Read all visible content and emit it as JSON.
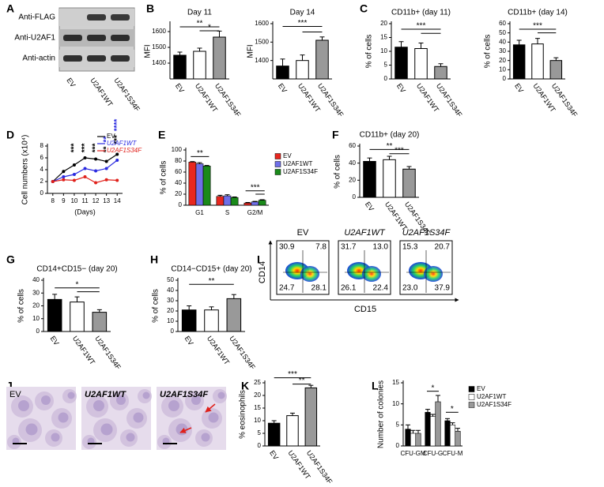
{
  "panel_labels": [
    "A",
    "B",
    "C",
    "D",
    "E",
    "F",
    "G",
    "H",
    "I",
    "J",
    "K",
    "L"
  ],
  "blot": {
    "rows": [
      "Anti-FLAG",
      "Anti-U2AF1",
      "Anti-actin"
    ],
    "lanes": [
      "EV",
      "U2AF1WT",
      "U2AF1S34F"
    ]
  },
  "flow": {
    "y_label": "CD14",
    "x_label": "CD15",
    "panels": [
      {
        "label": "EV",
        "quadrants": [
          "30.9",
          "7.8",
          "24.7",
          "28.1"
        ]
      },
      {
        "label": "U2AF1WT",
        "quadrants": [
          "31.7",
          "13.0",
          "26.1",
          "22.4"
        ]
      },
      {
        "label": "U2AF1S34F",
        "quadrants": [
          "15.3",
          "20.7",
          "23.0",
          "37.9"
        ]
      }
    ]
  },
  "micrographs": {
    "labels": [
      "EV",
      "U2AF1WT",
      "U2AF1S34F"
    ]
  },
  "chart_data": [
    {
      "type": "bar",
      "title": "Day 11",
      "y_label": "MFI",
      "categories": [
        "EV",
        "U2AF1WT",
        "U2AF1S34F"
      ],
      "values": [
        1450,
        1475,
        1565
      ],
      "errors": [
        20,
        20,
        38
      ],
      "colors": [
        "#000000",
        "#ffffff",
        "#999999"
      ],
      "ylim": [
        1300,
        1650
      ],
      "yticks": [
        1400,
        1500,
        1600
      ],
      "annotations": [
        "**",
        "*"
      ]
    },
    {
      "type": "bar",
      "title": "Day 14",
      "y_label": "MFI",
      "categories": [
        "EV",
        "U2AF1WT",
        "U2AF1S34F"
      ],
      "values": [
        1370,
        1400,
        1510
      ],
      "errors": [
        38,
        30,
        18
      ],
      "colors": [
        "#000000",
        "#ffffff",
        "#999999"
      ],
      "ylim": [
        1300,
        1600
      ],
      "yticks": [
        1400,
        1500,
        1600
      ],
      "annotations": [
        "***"
      ]
    },
    {
      "type": "bar",
      "title": "CD11b+ (day 11)",
      "y_label": "% of cells",
      "categories": [
        "EV",
        "U2AF1WT",
        "U2AF1S34F"
      ],
      "values": [
        11.5,
        11,
        4.5
      ],
      "errors": [
        2,
        2,
        1
      ],
      "colors": [
        "#000000",
        "#ffffff",
        "#999999"
      ],
      "ylim": [
        0,
        20
      ],
      "yticks": [
        0,
        5,
        10,
        15,
        20
      ],
      "annotations": [
        "***"
      ]
    },
    {
      "type": "bar",
      "title": "CD11b+ (day 14)",
      "y_label": "% of cells",
      "categories": [
        "EV",
        "U2AF1WT",
        "U2AF1S34F"
      ],
      "values": [
        37,
        38,
        20
      ],
      "errors": [
        5,
        6,
        3
      ],
      "colors": [
        "#000000",
        "#ffffff",
        "#999999"
      ],
      "ylim": [
        0,
        60
      ],
      "yticks": [
        0,
        10,
        20,
        30,
        40,
        50,
        60
      ],
      "annotations": [
        "***"
      ]
    },
    {
      "type": "line",
      "y_label": "Cell numbers (x10⁴)",
      "x_label": "(Days)",
      "x": [
        8,
        9,
        10,
        11,
        12,
        13,
        14
      ],
      "series": [
        {
          "name": "EV",
          "color": "#000000",
          "values": [
            2,
            3.7,
            4.8,
            6,
            5.8,
            5.4,
            6.6
          ]
        },
        {
          "name": "U2AF1WT",
          "color": "#2a2ae0",
          "values": [
            2,
            2.8,
            3.2,
            4.2,
            3.8,
            4.2,
            5.6
          ]
        },
        {
          "name": "U2AF1S34F",
          "color": "#e0201a",
          "values": [
            2,
            2.3,
            2.2,
            2.8,
            1.8,
            2.3,
            2.2
          ]
        }
      ],
      "xlim": [
        7.5,
        14.5
      ],
      "xticks": [
        8,
        9,
        10,
        11,
        12,
        13,
        14
      ],
      "ylim": [
        0,
        8
      ],
      "yticks": [
        0,
        2,
        4,
        6,
        8
      ],
      "annotations": [
        "***",
        "***",
        "***",
        "**",
        "***",
        "**",
        "****"
      ]
    },
    {
      "type": "grouped_bar",
      "y_label": "% of cells",
      "categories": [
        "G1",
        "S",
        "G2/M"
      ],
      "series": [
        {
          "name": "EV",
          "color": "#e8271f",
          "values": [
            78,
            16,
            4
          ],
          "errors": [
            1,
            2,
            1
          ]
        },
        {
          "name": "U2AF1WT",
          "color": "#6f6fe8",
          "values": [
            75,
            17,
            6
          ],
          "errors": [
            2,
            2,
            1
          ]
        },
        {
          "name": "U2AF1S34F",
          "color": "#1a8a1a",
          "values": [
            71,
            14,
            9
          ],
          "errors": [
            1,
            1,
            1
          ]
        }
      ],
      "ylim": [
        0,
        100
      ],
      "yticks": [
        0,
        20,
        40,
        60,
        80,
        100
      ],
      "annotations": [
        "**",
        "***"
      ]
    },
    {
      "type": "bar",
      "title": "CD11b+ (day 20)",
      "y_label": "% of cells",
      "categories": [
        "EV",
        "U2AF1WT",
        "U2AF1S34F"
      ],
      "values": [
        42,
        44,
        33
      ],
      "errors": [
        4,
        4,
        3
      ],
      "colors": [
        "#000000",
        "#ffffff",
        "#999999"
      ],
      "ylim": [
        0,
        60
      ],
      "yticks": [
        0,
        20,
        40,
        60
      ],
      "annotations": [
        "**",
        "***"
      ]
    },
    {
      "type": "bar",
      "title": "CD14+CD15− (day 20)",
      "y_label": "% of cells",
      "categories": [
        "EV",
        "U2AF1WT",
        "U2AF1S34F"
      ],
      "values": [
        25,
        23,
        15
      ],
      "errors": [
        4,
        4,
        2
      ],
      "colors": [
        "#000000",
        "#ffffff",
        "#999999"
      ],
      "ylim": [
        0,
        40
      ],
      "yticks": [
        0,
        10,
        20,
        30,
        40
      ],
      "annotations": [
        "*"
      ]
    },
    {
      "type": "bar",
      "title": "CD14−CD15+ (day 20)",
      "y_label": "% of cells",
      "categories": [
        "EV",
        "U2AF1WT",
        "U2AF1S34F"
      ],
      "values": [
        21,
        21,
        32
      ],
      "errors": [
        4,
        3,
        4
      ],
      "colors": [
        "#000000",
        "#ffffff",
        "#999999"
      ],
      "ylim": [
        0,
        50
      ],
      "yticks": [
        0,
        10,
        20,
        30,
        40,
        50
      ],
      "annotations": [
        "**"
      ]
    },
    {
      "type": "bar",
      "y_label": "% eosinophils",
      "categories": [
        "EV",
        "U2AF1WT",
        "U2AF1S34F"
      ],
      "values": [
        9,
        12,
        23
      ],
      "errors": [
        1,
        1,
        1
      ],
      "colors": [
        "#000000",
        "#ffffff",
        "#999999"
      ],
      "ylim": [
        0,
        25
      ],
      "yticks": [
        0,
        5,
        10,
        15,
        20,
        25
      ],
      "annotations": [
        "***",
        "**"
      ]
    },
    {
      "type": "grouped_bar",
      "y_label": "Number of colonies",
      "categories": [
        "CFU-GM",
        "CFU-G",
        "CFU-M"
      ],
      "series": [
        {
          "name": "EV",
          "color": "#000000",
          "values": [
            4,
            8,
            6
          ],
          "errors": [
            1,
            0.7,
            0.5
          ]
        },
        {
          "name": "U2AF1WT",
          "color": "#ffffff",
          "values": [
            3,
            7,
            5
          ],
          "errors": [
            0.7,
            0.5,
            0.5
          ]
        },
        {
          "name": "U2AF1S34F",
          "color": "#999999",
          "values": [
            3,
            10.5,
            3.5
          ],
          "errors": [
            0.7,
            1.5,
            0.7
          ]
        }
      ],
      "ylim": [
        0,
        15
      ],
      "yticks": [
        0,
        5,
        10,
        15
      ],
      "annotations": [
        "*",
        "*"
      ]
    }
  ]
}
